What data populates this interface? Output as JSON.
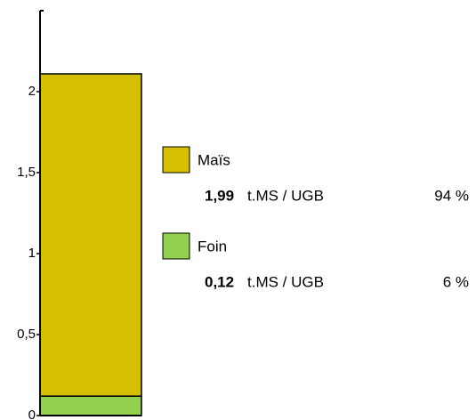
{
  "chart_data": {
    "type": "stacked-bar",
    "ylim": [
      0,
      2.5
    ],
    "yticks": [
      0,
      {
        "value": 0.5,
        "label": "0,5"
      },
      1,
      {
        "value": 1.5,
        "label": "1,5"
      },
      2
    ],
    "unit": "t.MS / UGB",
    "series": [
      {
        "name": "Foin",
        "color": "#92d050",
        "values": [
          0.12
        ],
        "value_labels": [
          "0,12"
        ],
        "share": 6,
        "share_label": "6 %"
      },
      {
        "name": "Maïs",
        "color": "#d4bf00",
        "values": [
          1.99
        ],
        "value_labels": [
          "1,99"
        ],
        "share": 94,
        "share_label": "94 %"
      }
    ],
    "legend_order": [
      1,
      0
    ]
  }
}
